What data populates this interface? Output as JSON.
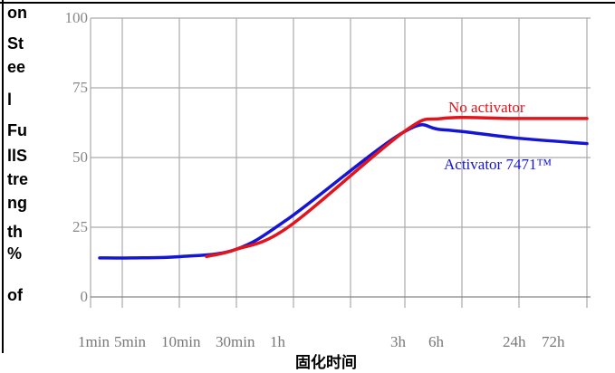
{
  "chart_data": {
    "type": "line",
    "title": "",
    "ylabel_lines": [
      "on",
      "St",
      "ee",
      "l",
      "Fu",
      "llS",
      "tre",
      "ng",
      "th",
      "%",
      "of"
    ],
    "xlabel": "固化时间",
    "y_ticks": [
      "100",
      "75",
      "50",
      "25",
      "0"
    ],
    "x_tick_labels": [
      "1min",
      "5min",
      "10min",
      "30min",
      "1h",
      "3h",
      "6h",
      "24h",
      "72h"
    ],
    "ylim": [
      0,
      100
    ],
    "grid": true,
    "colors": {
      "no_activator": "#e3141b",
      "activator": "#1515d6",
      "grid": "#aaaaaa",
      "axis": "#888888"
    },
    "series": [
      {
        "name": "No activator",
        "x": [
          "1min",
          "5min",
          "10min",
          "30min",
          "1h",
          "3h",
          "6h",
          "24h",
          "72h"
        ],
        "y": [
          14,
          14,
          14.5,
          17,
          25,
          59,
          64,
          64,
          64
        ]
      },
      {
        "name": "Activator 7471™",
        "x": [
          "1min",
          "5min",
          "10min",
          "30min",
          "1h",
          "3h",
          "6h",
          "24h",
          "72h"
        ],
        "y": [
          14,
          14,
          14.5,
          17,
          28,
          59,
          60,
          57,
          55
        ]
      }
    ]
  }
}
